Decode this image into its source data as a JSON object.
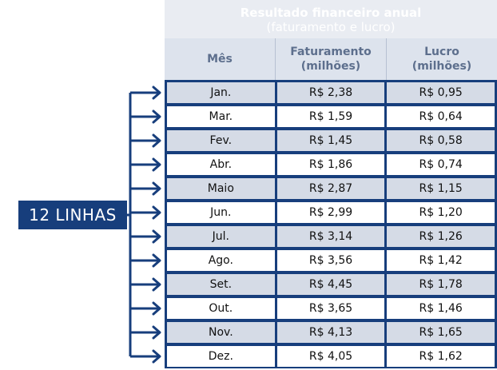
{
  "title": {
    "line1": "Resultado financeiro anual",
    "line2": "(faturamento e lucro)"
  },
  "headers": [
    "Mês",
    "Faturamento\n(milhões)",
    "Lucro\n(milhões)"
  ],
  "rows": [
    [
      "Jan.",
      "R$ 2,38",
      "R$ 0,95"
    ],
    [
      "Mar.",
      "R$ 1,59",
      "R$ 0,64"
    ],
    [
      "Fev.",
      "R$ 1,45",
      "R$ 0,58"
    ],
    [
      "Abr.",
      "R$ 1,86",
      "R$ 0,74"
    ],
    [
      "Maio",
      "R$ 2,87",
      "R$ 1,15"
    ],
    [
      "Jun.",
      "R$ 2,99",
      "R$ 1,20"
    ],
    [
      "Jul.",
      "R$ 3,14",
      "R$ 1,26"
    ],
    [
      "Ago.",
      "R$ 3,56",
      "R$ 1,42"
    ],
    [
      "Set.",
      "R$ 4,45",
      "R$ 1,78"
    ],
    [
      "Out.",
      "R$ 3,65",
      "R$ 1,46"
    ],
    [
      "Nov.",
      "R$ 4,13",
      "R$ 1,65"
    ],
    [
      "Dez.",
      "R$ 4,05",
      "R$ 1,62"
    ]
  ],
  "badge": "12 LINHAS",
  "colors": {
    "navy": "#173e7c",
    "row_shade": "#d5dbe6",
    "header_bg": "#dde3ed",
    "title_bg": "#e9ecf2"
  }
}
